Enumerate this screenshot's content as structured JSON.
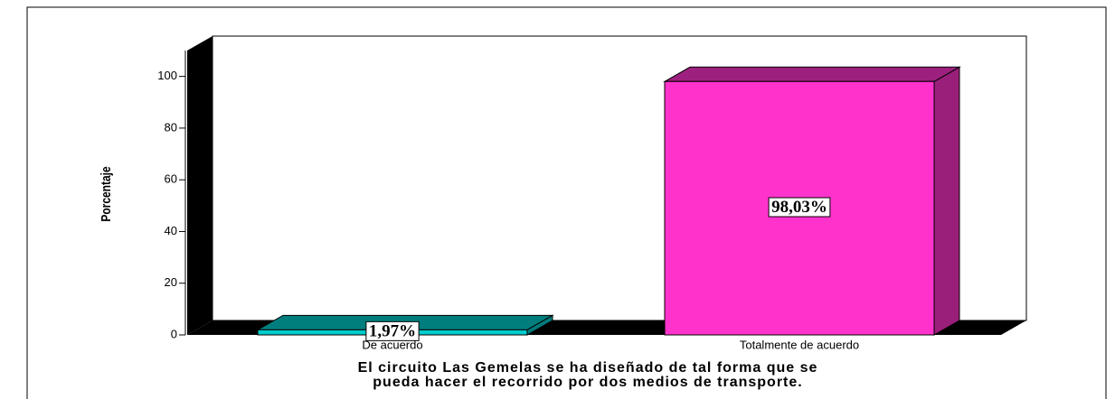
{
  "chart_data": {
    "type": "bar3d",
    "ylabel": "Porcentaje",
    "xlabel": [
      "El circuito Las Gemelas se ha diseñado de tal forma que se",
      "pueda hacer el recorrido por dos medios de transporte."
    ],
    "categories": [
      "De acuerdo",
      "Totalmente de acuerdo"
    ],
    "values": [
      1.97,
      98.03
    ],
    "value_labels": [
      "1,97%",
      "98,03%"
    ],
    "colors": [
      "#00cccc",
      "#ff33cc"
    ],
    "ylim": [
      0,
      110
    ],
    "yticks": [
      0,
      20,
      40,
      60,
      80,
      100
    ]
  }
}
